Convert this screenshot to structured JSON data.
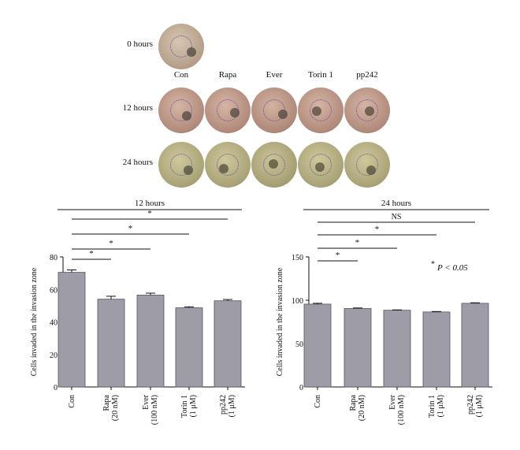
{
  "micrographs": {
    "time_labels": [
      "0 hours",
      "12 hours",
      "24 hours"
    ],
    "column_labels": [
      "Con",
      "Rapa",
      "Ever",
      "Torin 1",
      "pp242"
    ],
    "colors": {
      "hours0": "#c9b5a0",
      "hours12": "#c8a392",
      "hours24": "#b9b283"
    }
  },
  "chart_data": [
    {
      "type": "bar",
      "title": "12 hours",
      "ylabel": "Cells invaded in the invasion zone",
      "ylim": [
        0,
        80
      ],
      "yticks": [
        "0",
        "20",
        "40",
        "60",
        "80"
      ],
      "categories": [
        [
          "Con"
        ],
        [
          "Rapa",
          "(20 nM)"
        ],
        [
          "Ever",
          "(100 nM)"
        ],
        [
          "Torin 1",
          "(1 μM)"
        ],
        [
          "pp242",
          "(1 μM)"
        ]
      ],
      "values": [
        70.5,
        54,
        56.5,
        48.7,
        53
      ],
      "errors": [
        1.5,
        1.8,
        1.2,
        0.6,
        0.8
      ],
      "significance": [
        "*",
        "*",
        "*",
        "*"
      ],
      "bar_color": "#9e9ca6"
    },
    {
      "type": "bar",
      "title": "24 hours",
      "ylabel": "Cells invaded in the invasion zone",
      "ylim": [
        0,
        150
      ],
      "yticks": [
        "0",
        "50",
        "100",
        "150"
      ],
      "categories": [
        [
          "Con"
        ],
        [
          "Rapa",
          "(20 nM)"
        ],
        [
          "Ever",
          "(100 nM)"
        ],
        [
          "Torin 1",
          "(1 μM)"
        ],
        [
          "pp242",
          "(1 μM)"
        ]
      ],
      "values": [
        95.5,
        90.5,
        88.5,
        86.5,
        96.5
      ],
      "errors": [
        1.0,
        0.6,
        0.4,
        0.5,
        0.6
      ],
      "significance": [
        "*",
        "*",
        "*",
        "NS"
      ],
      "bar_color": "#9e9ca6"
    }
  ],
  "significance_note": {
    "star": "*",
    "text": "P < 0.05"
  }
}
